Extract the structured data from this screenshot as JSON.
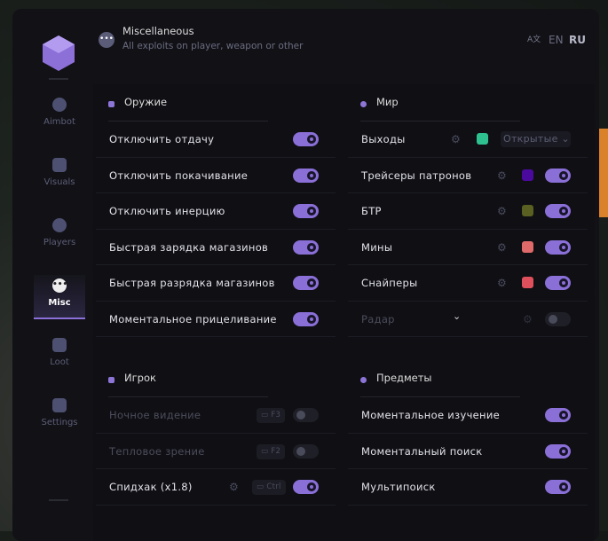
{
  "header": {
    "title": "Miscellaneous",
    "subtitle": "All exploits on player, weapon or other",
    "lang_en": "EN",
    "lang_ru": "RU",
    "icon": "ellipsis-icon",
    "translate_icon": "translate-icon"
  },
  "sidebar": {
    "items": [
      {
        "label": "Aimbot",
        "icon": "alien-icon"
      },
      {
        "label": "Visuals",
        "icon": "vr-headset-icon"
      },
      {
        "label": "Players",
        "icon": "users-icon"
      },
      {
        "label": "Misc",
        "icon": "ellipsis-icon",
        "active": true
      },
      {
        "label": "Loot",
        "icon": "briefcase-icon"
      },
      {
        "label": "Settings",
        "icon": "list-icon"
      }
    ]
  },
  "weapon": {
    "title": "Оружие",
    "items": [
      {
        "label": "Отключить отдачу",
        "on": true
      },
      {
        "label": "Отключить покачивание",
        "on": true
      },
      {
        "label": "Отключить инерцию",
        "on": true
      },
      {
        "label": "Быстрая зарядка магазинов",
        "on": true
      },
      {
        "label": "Быстрая разрядка магазинов",
        "on": true
      },
      {
        "label": "Моментальное прицеливание",
        "on": true
      }
    ]
  },
  "world": {
    "title": "Мир",
    "exits": {
      "label": "Выходы",
      "color": "#2fc08f",
      "select": "Открытые"
    },
    "items": [
      {
        "label": "Трейсеры патронов",
        "color": "#4b0a9e",
        "on": true
      },
      {
        "label": "БТР",
        "color": "#5a5f22",
        "on": true
      },
      {
        "label": "Мины",
        "color": "#e06a6a",
        "on": true
      },
      {
        "label": "Снайперы",
        "color": "#e0505c",
        "on": true
      }
    ],
    "radar": {
      "label": "Радар",
      "on": false
    }
  },
  "player": {
    "title": "Игрок",
    "items": [
      {
        "label": "Ночное видение",
        "key": "F3",
        "on": false
      },
      {
        "label": "Тепловое зрение",
        "key": "F2",
        "on": false
      },
      {
        "label": "Спидхак (x1.8)",
        "key": "Ctrl",
        "on": true
      }
    ]
  },
  "items": {
    "title": "Предметы",
    "items": [
      {
        "label": "Моментальное изучение",
        "on": true
      },
      {
        "label": "Моментальный поиск",
        "on": true
      },
      {
        "label": "Мультипоиск",
        "on": true
      }
    ]
  },
  "colors": {
    "accent": "#8a6fd6",
    "bg": "#111116"
  }
}
